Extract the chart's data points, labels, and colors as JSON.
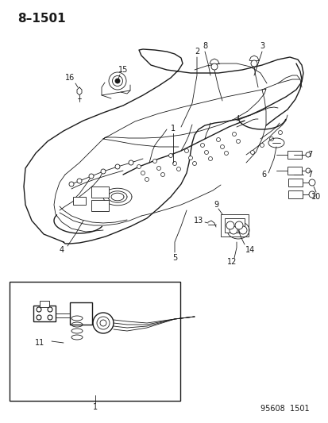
{
  "title": "8–1501",
  "watermark": "95608  1501",
  "bg_color": "#ffffff",
  "line_color": "#1a1a1a",
  "title_fontsize": 11,
  "watermark_fontsize": 7,
  "label_fontsize": 7,
  "fig_w": 4.14,
  "fig_h": 5.33,
  "dpi": 100
}
